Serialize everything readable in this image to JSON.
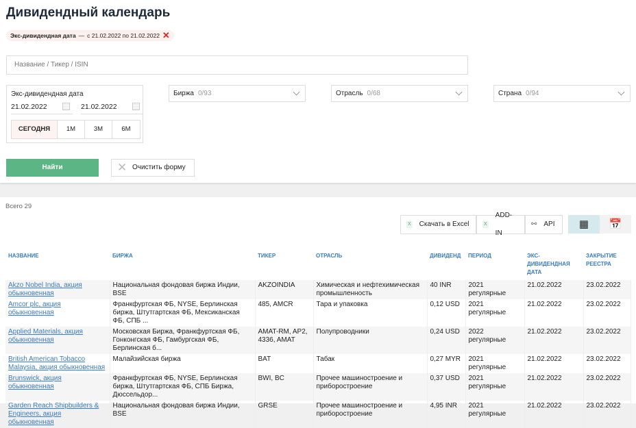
{
  "title": "Дивидендный календарь",
  "chip": {
    "label": "Экс-дивидендная дата",
    "dash": "—",
    "value": "с 21.02.2022 по 21.02.2022"
  },
  "search": {
    "placeholder": "Название / Тикер / ISIN"
  },
  "date_filter": {
    "label": "Экс-дивидендная дата",
    "from": "21.02.2022",
    "to": "21.02.2022",
    "periods": [
      "СЕГОДНЯ",
      "1М",
      "3М",
      "6М"
    ],
    "selected": "СЕГОДНЯ"
  },
  "dropdowns": [
    {
      "label": "Биржа",
      "count": "0/93"
    },
    {
      "label": "Отрасль",
      "count": "0/68"
    },
    {
      "label": "Страна",
      "count": "0/94"
    }
  ],
  "find_label": "Найти",
  "clear_label": "Очистить форму",
  "total": "Всего 29",
  "toolbar": {
    "excel": "Скачать в Excel",
    "addin": "ADD-IN",
    "api": "API",
    "active_view": "table"
  },
  "colors": {
    "accent": "#5bb585",
    "link": "#3a7dbf",
    "close": "#d9262b"
  },
  "table": {
    "headers": [
      "НАЗВАНИЕ",
      "БИРЖА",
      "ТИКЕР",
      "ОТРАСЛЬ",
      "ДИВИДЕНД",
      "ПЕРИОД",
      "ЭКС-ДИВИДЕНДНАЯ ДАТА",
      "ЗАКРЫТИЕ РЕЕСТРА"
    ],
    "rows": [
      [
        "Akzo Nobel India, акция обыкновенная",
        "Национальная фондовая биржа Индии, BSE",
        "AKZOINDIA",
        "Химическая и нефтехимическая промышленность",
        "40 INR",
        "2021 регулярные",
        "21.02.2022",
        "23.02.2022"
      ],
      [
        "Amcor plc, акция обыкновенная",
        "Франкфуртская ФБ, NYSE, Берлинская биржа, Штутгартская ФБ, Мексиканская ФБ, СПБ ...",
        "485, AMCR",
        "Тара и упаковка",
        "0,12 USD",
        "2021 регулярные",
        "21.02.2022",
        "23.02.2022"
      ],
      [
        "Applied Materials, акция обыкновенная",
        "Московская Биржа, Франкфуртская ФБ, Гонконгская ФБ, Гамбургская ФБ, Берлинская б...",
        "AMAT-RM, AP2, 4336, AMAT",
        "Полупроводники",
        "0,24 USD",
        "2022 регулярные",
        "21.02.2022",
        "23.02.2022"
      ],
      [
        "British American Tobacco Malaysia, акция обыкновенная",
        "Малайзийская биржа",
        "BAT",
        "Табак",
        "0,27 MYR",
        "2021 регулярные",
        "21.02.2022",
        "23.02.2022"
      ],
      [
        "Brunswick, акция обыкновенная",
        "Франкфуртская ФБ, NYSE, Берлинская биржа, Штутгартская ФБ, СПБ Биржа, Дюссельдор...",
        "BWI, BC",
        "Прочее машиностроение и приборостроение",
        "0,37 USD",
        "2021 регулярные",
        "21.02.2022",
        "23.02.2022"
      ],
      [
        "Garden Reach Shipbuilders & Engineers, акция обыкновенная",
        "Национальная фондовая биржа Индии, BSE",
        "GRSE",
        "Прочее машиностроение и приборостроение",
        "4,95 INR",
        "2021 регулярные",
        "21.02.2022",
        "23.02.2022"
      ]
    ]
  }
}
